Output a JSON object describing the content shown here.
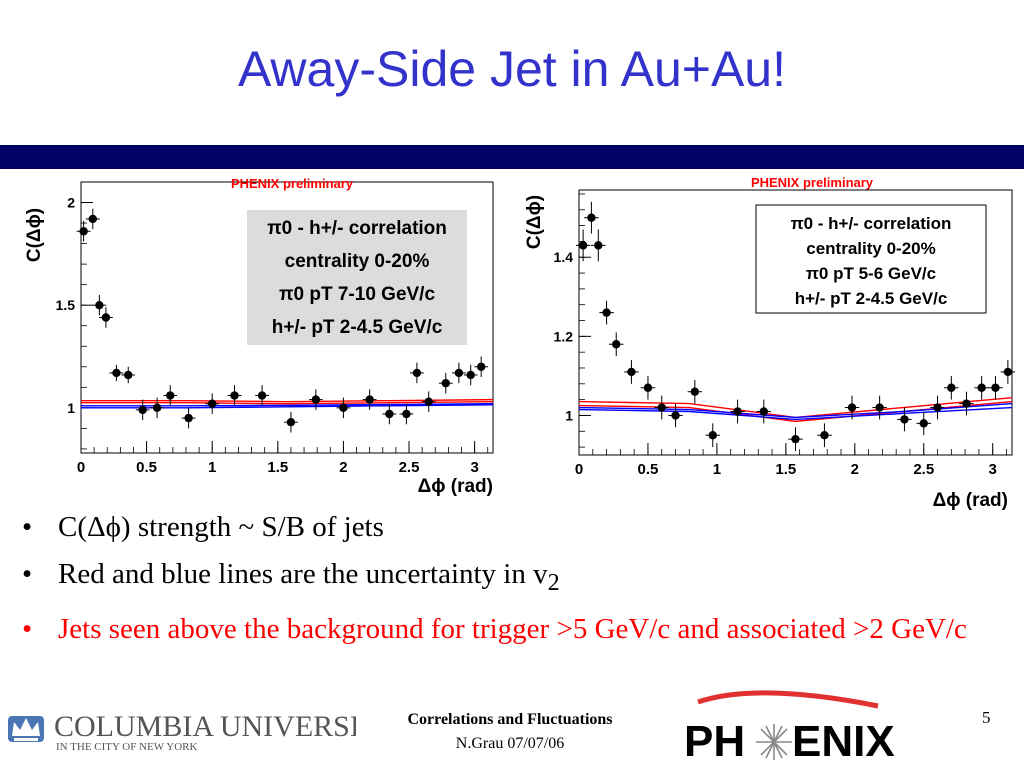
{
  "slide": {
    "title": "Away-Side Jet in Au+Au!",
    "bullets": [
      {
        "pre": "C(",
        "delta": "Δ",
        "phi": "ϕ",
        "post": ") strength ~ S/B of jets"
      },
      {
        "pre": "Red and blue lines are the uncertainty in v",
        "sub": "2"
      },
      {
        "text": "Jets seen above the background for trigger >5 GeV/c and associated >2 GeV/c"
      }
    ],
    "bullet_char": "•",
    "footer": {
      "title": "Correlations and Fluctuations",
      "author_date": "N.Grau 07/07/06",
      "page": "5"
    },
    "logos": {
      "columbia": {
        "name": "COLUMBIA UNIVERSITY",
        "sub": "IN THE CITY OF NEW YORK"
      },
      "phenix": {
        "left": "PH",
        "right": "ENIX"
      }
    }
  },
  "colors": {
    "title": "#3333cc",
    "bar": "#000066",
    "highlight": "#ff0000",
    "fit_red": "#ff0000",
    "fit_blue": "#0000ff"
  },
  "chart_data": [
    {
      "type": "scatter",
      "label": "PHENIX preliminary",
      "ylabel": "C(Δϕ)",
      "xlabel": "Δϕ (rad)",
      "xlim": [
        0,
        3.14
      ],
      "ylim": [
        0.78,
        2.1
      ],
      "xticks": [
        "0",
        "0.5",
        "1",
        "1.5",
        "2",
        "2.5",
        "3"
      ],
      "yticks": [
        "1",
        "1.5",
        "2"
      ],
      "legend_lines": [
        "π0 - h+/- correlation",
        "centrality 0-20%",
        "π0 pT 7-10 GeV/c",
        "h+/- pT 2-4.5 GeV/c"
      ],
      "x": [
        0.02,
        0.09,
        0.14,
        0.19,
        0.27,
        0.36,
        0.47,
        0.58,
        0.68,
        0.82,
        1.0,
        1.17,
        1.38,
        1.6,
        1.79,
        2.0,
        2.2,
        2.35,
        2.48,
        2.56,
        2.65,
        2.78,
        2.88,
        2.97,
        3.05
      ],
      "y": [
        1.86,
        1.92,
        1.5,
        1.44,
        1.17,
        1.16,
        0.99,
        1.0,
        1.06,
        0.95,
        1.02,
        1.06,
        1.06,
        0.93,
        1.04,
        1.0,
        1.04,
        0.97,
        0.97,
        1.17,
        1.03,
        1.12,
        1.17,
        1.16,
        1.2
      ],
      "err": [
        0.05,
        0.05,
        0.05,
        0.05,
        0.04,
        0.04,
        0.05,
        0.05,
        0.05,
        0.05,
        0.05,
        0.05,
        0.05,
        0.05,
        0.05,
        0.05,
        0.05,
        0.05,
        0.05,
        0.05,
        0.05,
        0.05,
        0.05,
        0.05,
        0.05
      ],
      "bands": [
        {
          "color": "red",
          "y": [
            1.025,
            1.025,
            1.02,
            1.025,
            1.03
          ]
        },
        {
          "color": "red",
          "y": [
            1.035,
            1.035,
            1.03,
            1.035,
            1.04
          ]
        },
        {
          "color": "blue",
          "y": [
            1.0,
            1.0,
            1.005,
            1.01,
            1.015
          ]
        },
        {
          "color": "blue",
          "y": [
            1.01,
            1.01,
            1.012,
            1.016,
            1.02
          ]
        }
      ],
      "bands_x": [
        0,
        0.8,
        1.57,
        2.35,
        3.14
      ]
    },
    {
      "type": "scatter",
      "label": "PHENIX preliminary",
      "ylabel": "C(Δϕ)",
      "xlabel": "Δϕ (rad)",
      "xlim": [
        0,
        3.14
      ],
      "ylim": [
        0.9,
        1.57
      ],
      "xticks": [
        "0",
        "0.5",
        "1",
        "1.5",
        "2",
        "2.5",
        "3"
      ],
      "yticks": [
        "1",
        "1.2",
        "1.4"
      ],
      "legend_lines": [
        "π0 - h+/- correlation",
        "centrality 0-20%",
        "π0 pT 5-6 GeV/c",
        "h+/- pT 2-4.5 GeV/c"
      ],
      "x": [
        0.03,
        0.09,
        0.14,
        0.2,
        0.27,
        0.38,
        0.5,
        0.6,
        0.7,
        0.84,
        0.97,
        1.15,
        1.34,
        1.57,
        1.78,
        1.98,
        2.18,
        2.36,
        2.5,
        2.6,
        2.7,
        2.81,
        2.92,
        3.02,
        3.11
      ],
      "y": [
        1.43,
        1.5,
        1.43,
        1.26,
        1.18,
        1.11,
        1.07,
        1.02,
        1.0,
        1.06,
        0.95,
        1.01,
        1.01,
        0.94,
        0.95,
        1.02,
        1.02,
        0.99,
        0.98,
        1.02,
        1.07,
        1.03,
        1.07,
        1.07,
        1.11
      ],
      "err": [
        0.04,
        0.04,
        0.04,
        0.03,
        0.03,
        0.03,
        0.03,
        0.03,
        0.03,
        0.03,
        0.03,
        0.03,
        0.03,
        0.03,
        0.03,
        0.03,
        0.03,
        0.03,
        0.03,
        0.03,
        0.03,
        0.03,
        0.03,
        0.03,
        0.03
      ],
      "bands": [
        {
          "color": "red",
          "y": [
            1.025,
            1.02,
            0.985,
            1.01,
            1.035
          ]
        },
        {
          "color": "red",
          "y": [
            1.035,
            1.03,
            0.995,
            1.02,
            1.045
          ]
        },
        {
          "color": "blue",
          "y": [
            1.015,
            1.01,
            0.99,
            1.005,
            1.02
          ]
        },
        {
          "color": "blue",
          "y": [
            1.02,
            1.015,
            0.995,
            1.01,
            1.03
          ]
        }
      ],
      "bands_x": [
        0,
        0.8,
        1.57,
        2.35,
        3.14
      ]
    }
  ]
}
